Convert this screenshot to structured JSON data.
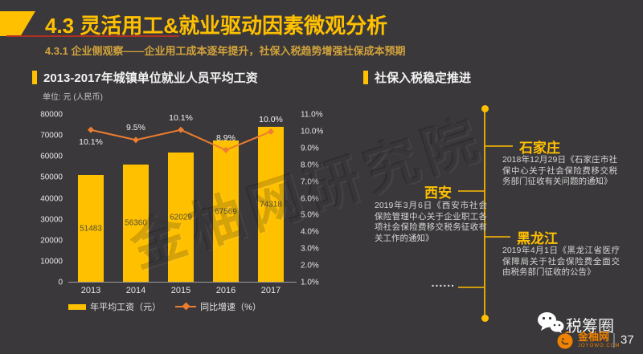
{
  "header": {
    "title": "4.3 灵活用工&就业驱动因素微观分析",
    "subtitle": "4.3.1 企业侧观察——企业用工成本逐年提升，社保入税趋势增强社保成本预期"
  },
  "left_panel": {
    "heading": "2013-2017年城镇单位就业人员平均工资",
    "unit_label": "单位: 元 (人民币)",
    "legend": [
      {
        "type": "bar",
        "label": "年平均工资（元）",
        "color": "#FFC000"
      },
      {
        "type": "line",
        "label": "同比增速（%）",
        "color": "#ED7D31"
      }
    ]
  },
  "chart_data": {
    "type": "bar",
    "title": "2013-2017年城镇单位就业人员平均工资",
    "categories": [
      "2013",
      "2014",
      "2015",
      "2016",
      "2017"
    ],
    "series": [
      {
        "name": "年平均工资（元）",
        "type": "bar",
        "axis": "left",
        "values": [
          51483,
          56360,
          62029,
          67569,
          74318
        ],
        "color": "#FFC000"
      },
      {
        "name": "同比增速（%）",
        "type": "line",
        "axis": "right",
        "values": [
          10.1,
          9.5,
          10.1,
          8.9,
          10.0
        ],
        "labels": [
          "10.1%",
          "9.5%",
          "10.1%",
          "8.9%",
          "10.0%"
        ],
        "color": "#ED7D31"
      }
    ],
    "left_axis": {
      "min": 0,
      "max": 80000,
      "ticks": [
        "80000",
        "70000",
        "60000",
        "50000",
        "40000",
        "30000",
        "20000",
        "10000",
        "0"
      ]
    },
    "right_axis": {
      "min": 1,
      "max": 11,
      "ticks": [
        "11.0%",
        "10.0%",
        "9.0%",
        "8.0%",
        "7.0%",
        "6.0%",
        "5.0%",
        "4.0%",
        "3.0%",
        "2.0%",
        "1.0%"
      ]
    },
    "grid": false,
    "legend_position": "bottom"
  },
  "right_panel": {
    "heading": "社保入税稳定推进",
    "timeline": [
      {
        "city": "石家庄",
        "side": "right",
        "desc": "2018年12月29日《石家庄市社保中心关于社会保险费移交税务部门征收有关问题的通知》"
      },
      {
        "city": "西安",
        "side": "left",
        "desc": "2019年3月6日《西安市社会保险管理中心关于企业职工各项社会保险费移交税务征收有关工作的通知》"
      },
      {
        "city": "黑龙江",
        "side": "right",
        "desc": "2019年4月1日《黑龙江省医疗保障局关于社会保险费全面交由税务部门征收的公告》"
      },
      {
        "city": "......",
        "side": "left",
        "desc": ""
      }
    ]
  },
  "watermark": "金柚网研究院",
  "footer": {
    "wechat_name": "税筹圈",
    "brand_name": "金柚网",
    "brand_domain": "JOYOWO.COM",
    "page_number": "37"
  },
  "colors": {
    "background": "#3A383A",
    "accent_gold": "#FFC000",
    "accent_orange": "#ED7D31",
    "title_underline_red": "#B03024",
    "subtitle_gold": "#D0A23C",
    "brand_orange": "#F08200"
  }
}
